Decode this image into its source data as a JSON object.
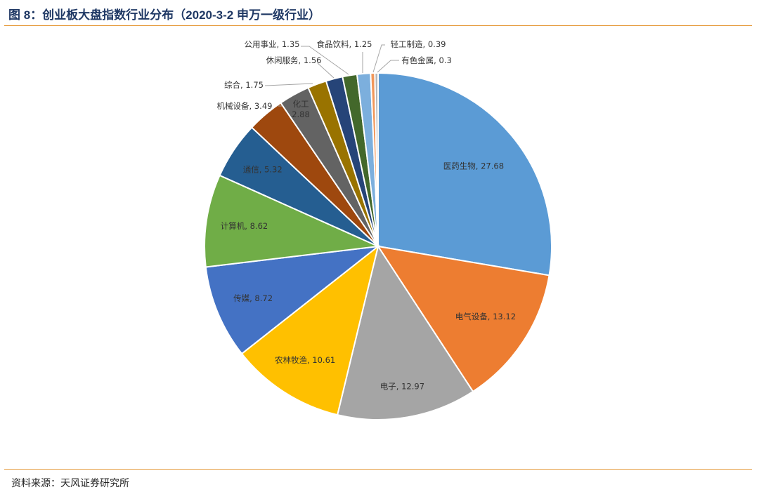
{
  "figure": {
    "title": "图 8：创业板大盘指数行业分布（2020-3-2 申万一级行业）",
    "source": "资料来源：天风证券研究所"
  },
  "chart_data": {
    "type": "pie",
    "title": "图 8：创业板大盘指数行业分布（2020-3-2 申万一级行业）",
    "start": "12 o'clock, clockwise",
    "legend": "none (data labels on slices)",
    "slices": [
      {
        "name": "医药生物",
        "value": 27.68,
        "color": "#5b9bd5"
      },
      {
        "name": "电气设备",
        "value": 13.12,
        "color": "#ed7d31"
      },
      {
        "name": "电子",
        "value": 12.97,
        "color": "#a5a5a5"
      },
      {
        "name": "农林牧渔",
        "value": 10.61,
        "color": "#ffc000"
      },
      {
        "name": "传媒",
        "value": 8.72,
        "color": "#4472c4"
      },
      {
        "name": "计算机",
        "value": 8.62,
        "color": "#70ad47"
      },
      {
        "name": "通信",
        "value": 5.32,
        "color": "#255e91"
      },
      {
        "name": "机械设备",
        "value": 3.49,
        "color": "#9e480e"
      },
      {
        "name": "化工",
        "value": 2.88,
        "color": "#636363"
      },
      {
        "name": "综合",
        "value": 1.75,
        "color": "#997300"
      },
      {
        "name": "休闲服务",
        "value": 1.56,
        "color": "#264478"
      },
      {
        "name": "公用事业",
        "value": 1.35,
        "color": "#43682b"
      },
      {
        "name": "食品饮料",
        "value": 1.25,
        "color": "#7cafdd"
      },
      {
        "name": "轻工制造",
        "value": 0.39,
        "color": "#f1975a"
      },
      {
        "name": "有色金属",
        "value": 0.3,
        "color": "#b7b7b7"
      }
    ]
  }
}
